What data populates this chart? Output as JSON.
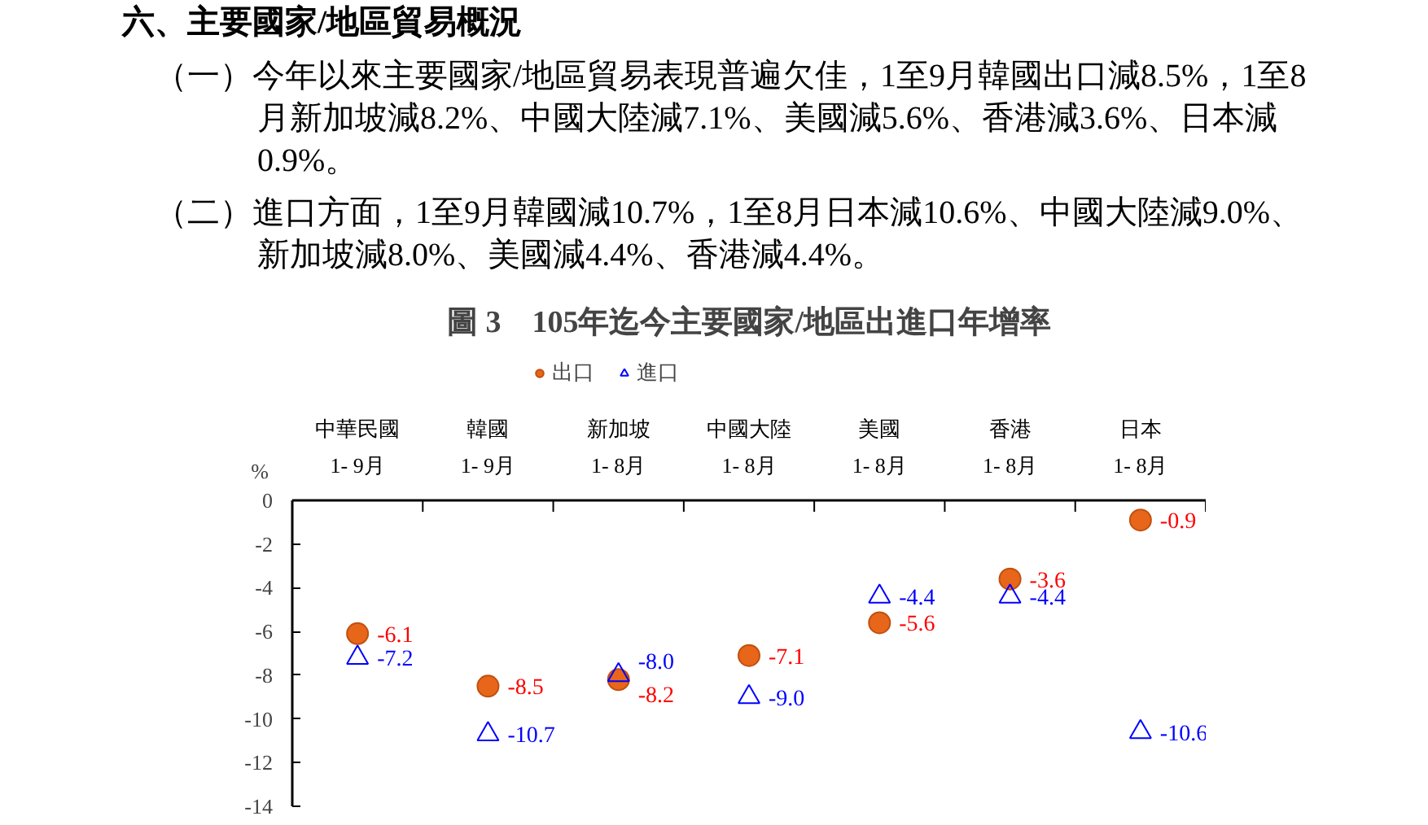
{
  "chart_data": {
    "type": "scatter",
    "title": "圖 3　105年迄今主要國家/地區出進口年增率",
    "ylabel": "%",
    "annotations": [
      "六、主要國家/地區貿易概況",
      "（一）今年以來主要國家/地區貿易表現普遍欠佳，1至9月韓國出口減8.5%，1至8月新加坡減8.2%、中國大陸減7.1%、美國減5.6%、香港減3.6%、日本減0.9%。",
      "（二）進口方面，1至9月韓國減10.7%，1至8月日本減10.6%、中國大陸減9.0%、新加坡減8.0%、美國減4.4%、香港減4.4%。"
    ],
    "categories": [
      "中華民國\n1- 9月",
      "韓國\n1- 9月",
      "新加坡\n1- 8月",
      "中國大陸\n1- 8月",
      "美國\n1- 8月",
      "香港\n1- 8月",
      "日本\n1- 8月"
    ],
    "series": [
      {
        "name": "出口",
        "color": "#e8661a",
        "marker": "circle",
        "values": [
          -6.1,
          -8.5,
          -8.2,
          -7.1,
          -5.6,
          -3.6,
          -0.9
        ],
        "value_labels": [
          "-6.1",
          "-8.5",
          "-8.2",
          "-7.1",
          "-5.6",
          "-3.6",
          "-0.9"
        ]
      },
      {
        "name": "進口",
        "color": "#0000ff",
        "marker": "triangle",
        "values": [
          -7.2,
          -10.7,
          -8.0,
          -9.0,
          -4.4,
          -4.4,
          -10.6
        ],
        "value_labels": [
          "-7.2",
          "-10.7",
          "-8.0",
          "-9.0",
          "-4.4",
          "-4.4",
          "-10.6"
        ]
      }
    ],
    "ylim": [
      -14,
      0
    ],
    "yticks": [
      0,
      -2,
      -4,
      -6,
      -8,
      -10,
      -12,
      -14
    ],
    "data_labels": true,
    "grid": false,
    "legend": "top"
  }
}
